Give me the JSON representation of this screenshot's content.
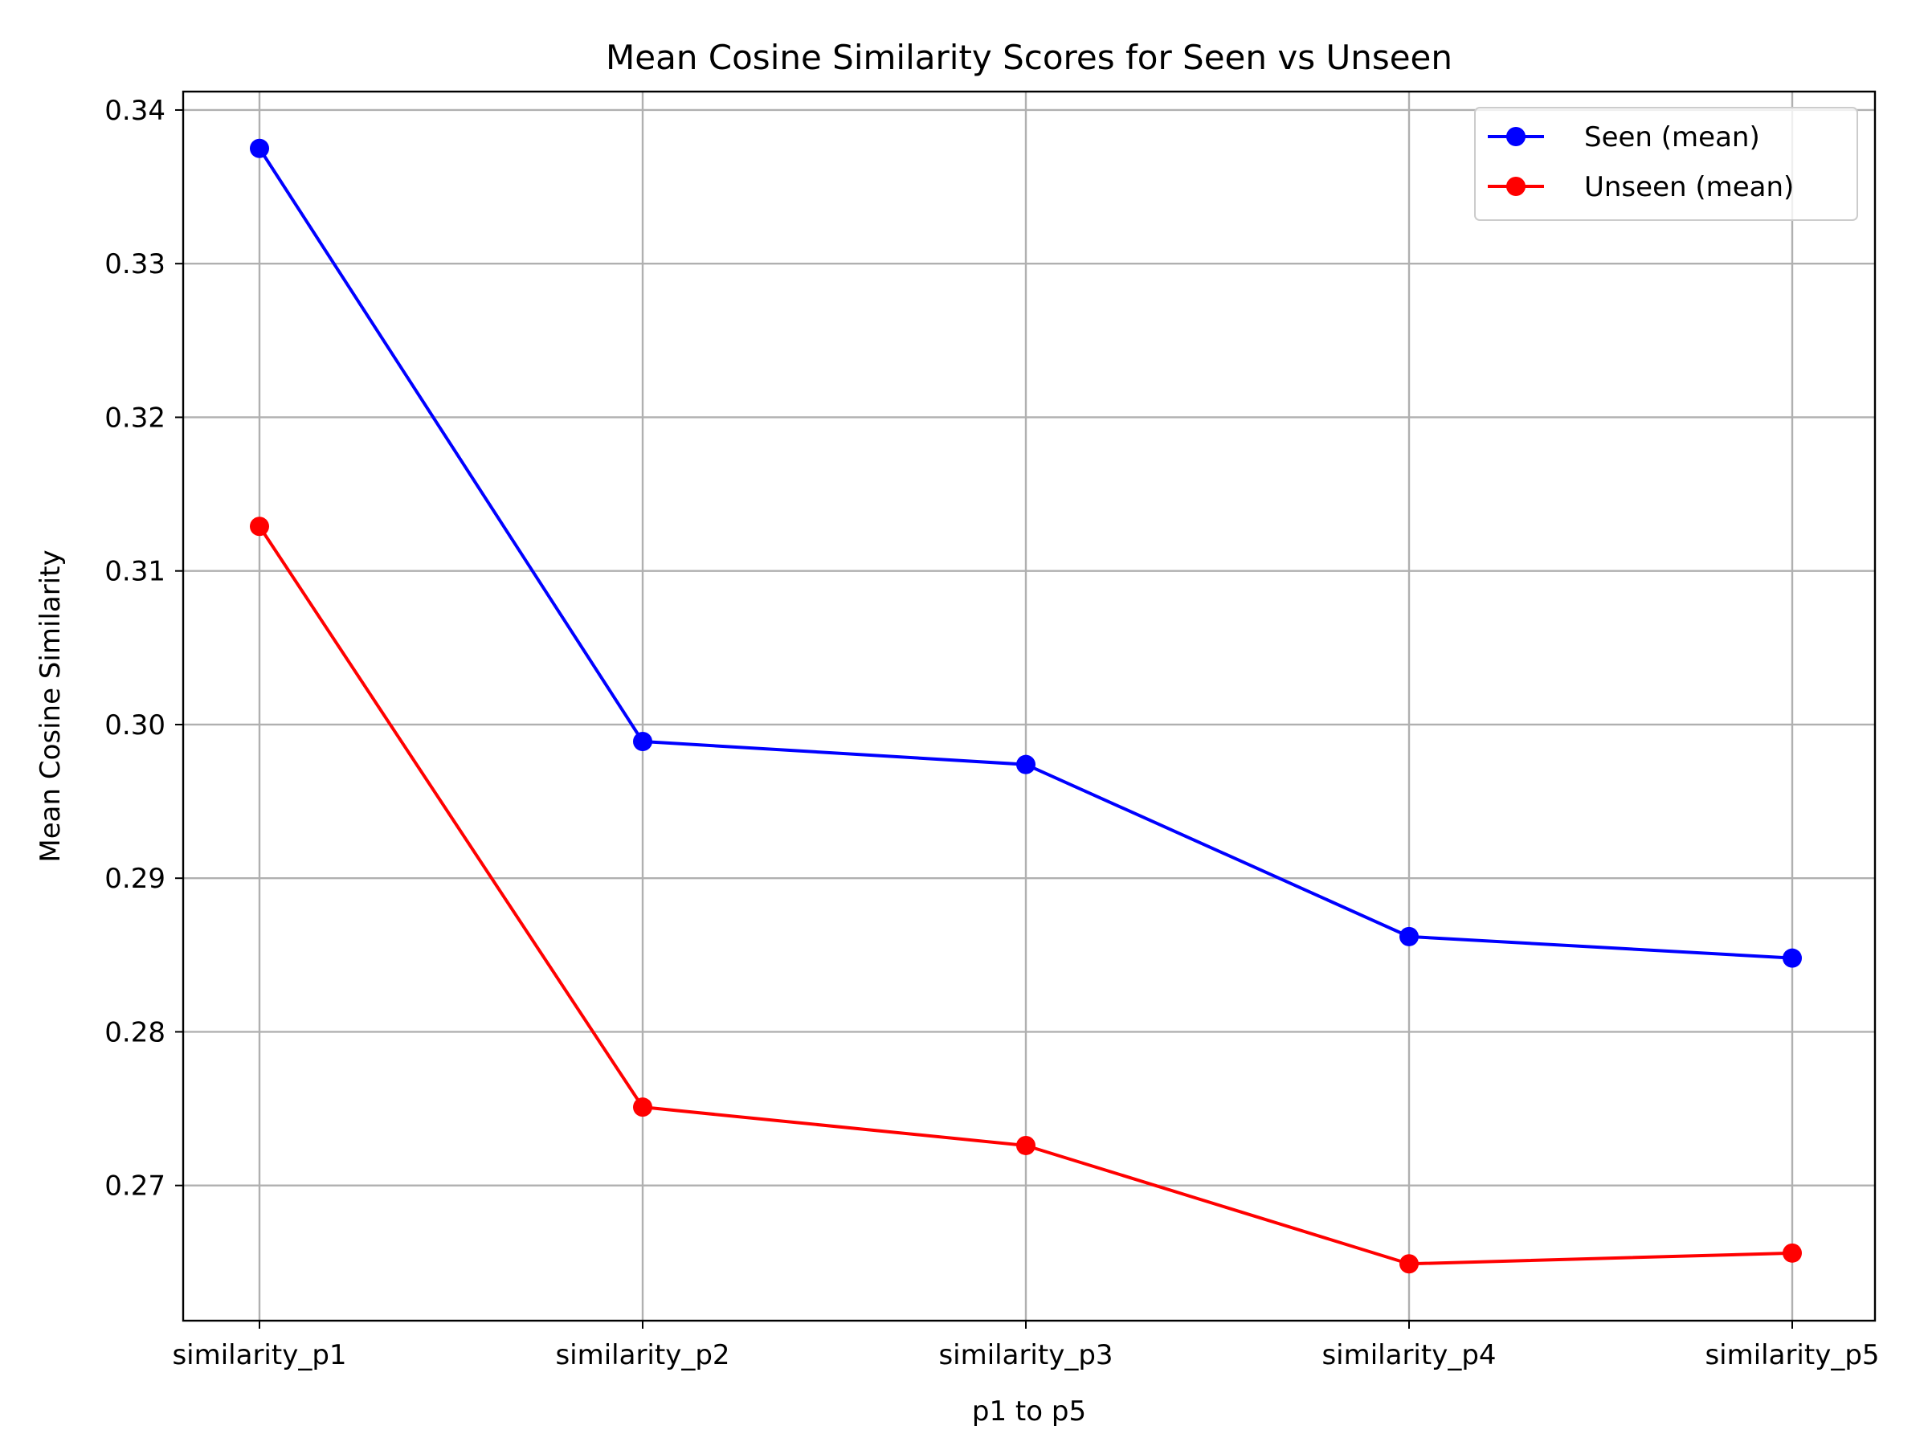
{
  "chart_data": {
    "type": "line",
    "title": "Mean Cosine Similarity Scores for Seen vs Unseen",
    "xlabel": "p1 to p5",
    "ylabel": "Mean Cosine Similarity",
    "categories": [
      "similarity_p1",
      "similarity_p2",
      "similarity_p3",
      "similarity_p4",
      "similarity_p5"
    ],
    "series": [
      {
        "name": "Seen (mean)",
        "color": "#0000ff",
        "marker": "circle",
        "values": [
          0.3375,
          0.2989,
          0.2974,
          0.2862,
          0.2848
        ]
      },
      {
        "name": "Unseen (mean)",
        "color": "#ff0000",
        "marker": "circle",
        "values": [
          0.3129,
          0.2751,
          0.2726,
          0.2649,
          0.2656
        ]
      }
    ],
    "ylim": [
      0.2612,
      0.3412
    ],
    "yticks": [
      0.27,
      0.28,
      0.29,
      0.3,
      0.31,
      0.32,
      0.33,
      0.34
    ],
    "ytick_labels": [
      "0.27",
      "0.28",
      "0.29",
      "0.30",
      "0.31",
      "0.32",
      "0.33",
      "0.34"
    ],
    "grid": true,
    "legend_position": "top-right"
  }
}
